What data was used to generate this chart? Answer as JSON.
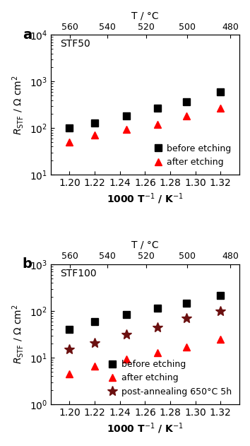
{
  "panel_a": {
    "title": "STF50",
    "before_x": [
      1.2,
      1.22,
      1.245,
      1.27,
      1.293,
      1.32
    ],
    "before_y": [
      100,
      130,
      185,
      270,
      370,
      600
    ],
    "after_x": [
      1.2,
      1.22,
      1.245,
      1.27,
      1.293,
      1.32
    ],
    "after_y": [
      50,
      72,
      93,
      120,
      185,
      265
    ],
    "ylim": [
      10,
      10000
    ],
    "ylabel": "$R_{\\mathrm{STF}}$ / $\\Omega$ cm$^2$",
    "xlabel": "1000 T$^{-1}$ / K$^{-1}$",
    "legend_before": "before etching",
    "legend_after": "after etching"
  },
  "panel_b": {
    "title": "STF100",
    "before_x": [
      1.2,
      1.22,
      1.245,
      1.27,
      1.293,
      1.32
    ],
    "before_y": [
      40,
      60,
      83,
      115,
      150,
      220
    ],
    "after_x": [
      1.2,
      1.22,
      1.245,
      1.27,
      1.293,
      1.32
    ],
    "after_y": [
      4.5,
      6.5,
      9.5,
      13,
      17,
      25
    ],
    "anneal_x": [
      1.2,
      1.22,
      1.245,
      1.27,
      1.293,
      1.32
    ],
    "anneal_y": [
      15,
      21,
      32,
      45,
      72,
      100
    ],
    "ylim": [
      1,
      1000
    ],
    "ylabel": "$R_{\\mathrm{STF}}$ / $\\Omega$ cm$^2$",
    "xlabel": "1000 T$^{-1}$ / K$^{-1}$",
    "legend_before": "before etching",
    "legend_after": "after etching",
    "legend_anneal": "post-annealing 650°C 5h"
  },
  "top_axis_ticks": [
    560,
    540,
    520,
    500,
    480
  ],
  "bottom_axis_ticks": [
    1.2,
    1.22,
    1.24,
    1.26,
    1.28,
    1.3,
    1.32
  ],
  "color_before": "#000000",
  "color_after": "#ff0000",
  "color_anneal": "#6b1010",
  "marker_before": "s",
  "marker_after": "^",
  "marker_anneal": "*",
  "marker_size": 7,
  "marker_size_star": 10,
  "label_a": "a",
  "label_b": "b"
}
